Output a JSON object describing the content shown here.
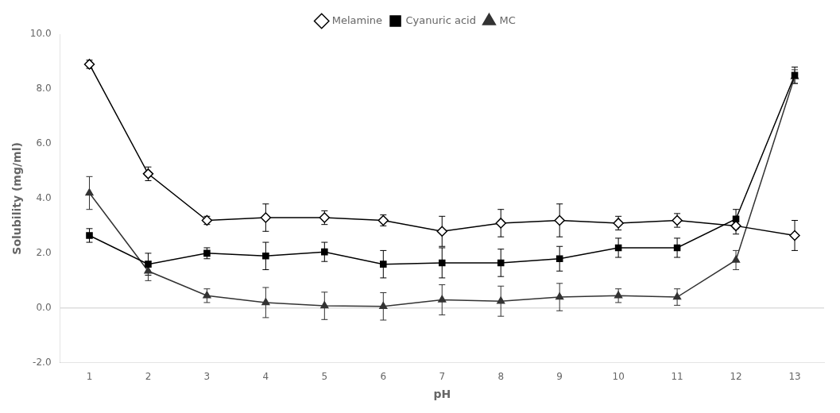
{
  "chart_data": {
    "type": "line",
    "x": [
      1,
      2,
      3,
      4,
      5,
      6,
      7,
      8,
      9,
      10,
      11,
      12,
      13
    ],
    "xlabel": "pH",
    "ylabel": "Solubility (mg/ml)",
    "series": [
      {
        "name": "Melamine",
        "color": "#000000",
        "marker": "open_diamond",
        "values": [
          8.9,
          4.9,
          3.2,
          3.3,
          3.3,
          3.2,
          2.8,
          3.1,
          3.2,
          3.1,
          3.2,
          3.0,
          2.65
        ],
        "errors": [
          0.15,
          0.25,
          0.15,
          0.5,
          0.25,
          0.2,
          0.55,
          0.5,
          0.6,
          0.25,
          0.25,
          0.3,
          0.55
        ]
      },
      {
        "name": "Cyanuric acid",
        "color": "#000000",
        "marker": "square",
        "values": [
          2.65,
          1.6,
          2.0,
          1.9,
          2.05,
          1.6,
          1.65,
          1.65,
          1.8,
          2.2,
          2.2,
          3.25,
          8.5
        ],
        "errors": [
          0.25,
          0.4,
          0.2,
          0.5,
          0.35,
          0.5,
          0.55,
          0.5,
          0.45,
          0.35,
          0.35,
          0.35,
          0.3
        ]
      },
      {
        "name": "MC",
        "color": "#333333",
        "marker": "triangle",
        "values": [
          4.2,
          1.35,
          0.45,
          0.2,
          0.08,
          0.06,
          0.3,
          0.25,
          0.4,
          0.45,
          0.4,
          1.75,
          8.45
        ],
        "errors": [
          0.6,
          0.35,
          0.25,
          0.55,
          0.5,
          0.5,
          0.55,
          0.55,
          0.5,
          0.25,
          0.3,
          0.35,
          0.25
        ]
      }
    ],
    "xlim": [
      0.5,
      13.5
    ],
    "xticks": [
      1,
      2,
      3,
      4,
      5,
      6,
      7,
      8,
      9,
      10,
      11,
      12,
      13
    ],
    "ylim": [
      -2,
      10
    ],
    "yticks": [
      {
        "value": -2,
        "label": "-2.0"
      },
      {
        "value": 0,
        "label": "0.0"
      },
      {
        "value": 2,
        "label": "2.0"
      },
      {
        "value": 4,
        "label": "4.0"
      },
      {
        "value": 6,
        "label": "6.0"
      },
      {
        "value": 8,
        "label": "8.0"
      },
      {
        "value": 10,
        "label": "10.0"
      }
    ],
    "hlines": [
      {
        "y": 0,
        "color": "#cccccc"
      }
    ],
    "grid": false,
    "legend": "top"
  }
}
